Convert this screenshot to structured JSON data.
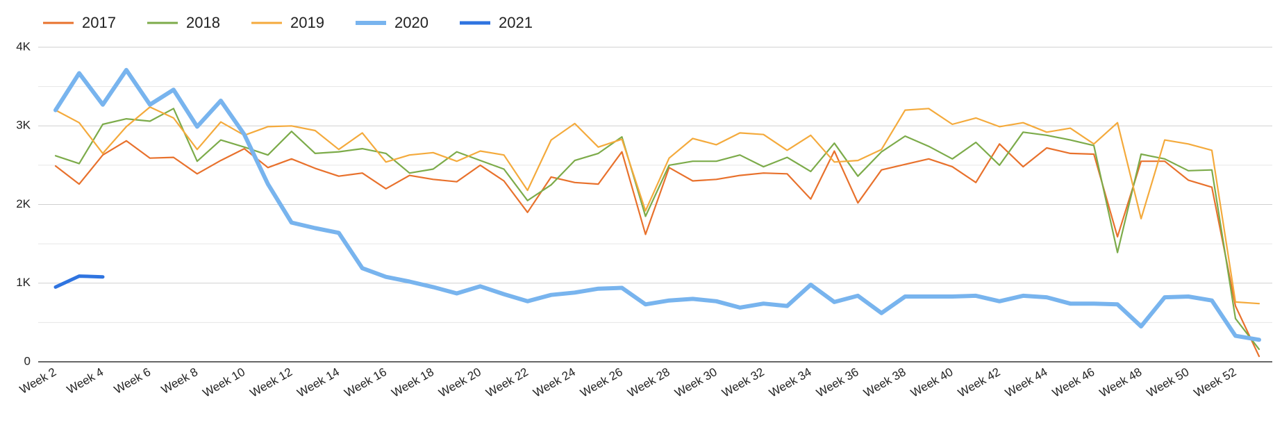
{
  "chart_data": {
    "type": "line",
    "categories": [
      "Week 2",
      null,
      "Week 4",
      null,
      "Week 6",
      null,
      "Week 8",
      null,
      "Week 10",
      null,
      "Week 12",
      null,
      "Week 14",
      null,
      "Week 16",
      null,
      "Week 18",
      null,
      "Week 20",
      null,
      "Week 22",
      null,
      "Week 24",
      null,
      "Week 26",
      null,
      "Week 28",
      null,
      "Week 30",
      null,
      "Week 32",
      null,
      "Week 34",
      null,
      "Week 36",
      null,
      "Week 38",
      null,
      "Week 40",
      null,
      "Week 42",
      null,
      "Week 44",
      null,
      "Week 46",
      null,
      "Week 48",
      null,
      "Week 50",
      null,
      "Week 52",
      null
    ],
    "series": [
      {
        "name": "2017",
        "color": "#e8712c",
        "line_width": 2.2,
        "values": [
          2490,
          2260,
          2630,
          2810,
          2590,
          2600,
          2390,
          2560,
          2710,
          2470,
          2580,
          2460,
          2360,
          2400,
          2200,
          2370,
          2320,
          2290,
          2500,
          2300,
          1900,
          2350,
          2280,
          2260,
          2670,
          1620,
          2470,
          2300,
          2320,
          2370,
          2400,
          2390,
          2070,
          2680,
          2020,
          2440,
          2510,
          2580,
          2480,
          2280,
          2770,
          2480,
          2720,
          2650,
          2640,
          1590,
          2550,
          2550,
          2310,
          2220,
          710,
          70
        ]
      },
      {
        "name": "2018",
        "color": "#7cab4a",
        "line_width": 2.2,
        "values": [
          2620,
          2520,
          3020,
          3090,
          3060,
          3220,
          2550,
          2820,
          2730,
          2630,
          2930,
          2650,
          2670,
          2710,
          2650,
          2400,
          2450,
          2670,
          2560,
          2450,
          2050,
          2250,
          2560,
          2650,
          2860,
          1850,
          2500,
          2550,
          2550,
          2630,
          2480,
          2600,
          2420,
          2780,
          2360,
          2670,
          2870,
          2740,
          2580,
          2790,
          2500,
          2920,
          2880,
          2820,
          2750,
          1390,
          2640,
          2580,
          2430,
          2440,
          550,
          160
        ]
      },
      {
        "name": "2019",
        "color": "#f4aa3c",
        "line_width": 2.2,
        "values": [
          3200,
          3040,
          2650,
          2990,
          3240,
          3100,
          2700,
          3050,
          2880,
          2990,
          3000,
          2940,
          2700,
          2910,
          2540,
          2630,
          2660,
          2550,
          2680,
          2630,
          2180,
          2820,
          3030,
          2730,
          2830,
          1920,
          2590,
          2840,
          2760,
          2910,
          2890,
          2690,
          2880,
          2540,
          2560,
          2700,
          3200,
          3220,
          3020,
          3100,
          2990,
          3040,
          2920,
          2970,
          2770,
          3040,
          1820,
          2820,
          2770,
          2690,
          760,
          740
        ]
      },
      {
        "name": "2020",
        "color": "#78b4ee",
        "line_width": 6,
        "values": [
          3200,
          3670,
          3270,
          3710,
          3270,
          3460,
          2990,
          3320,
          2890,
          2260,
          1770,
          1700,
          1640,
          1190,
          1080,
          1020,
          950,
          870,
          960,
          860,
          770,
          850,
          880,
          930,
          940,
          730,
          780,
          800,
          770,
          690,
          740,
          710,
          980,
          760,
          840,
          620,
          830,
          830,
          830,
          840,
          770,
          840,
          820,
          740,
          740,
          730,
          450,
          820,
          830,
          780,
          330,
          280
        ]
      },
      {
        "name": "2021",
        "color": "#2f74e0",
        "line_width": 5,
        "values": [
          950,
          1090,
          1080,
          null,
          null,
          null,
          null,
          null,
          null,
          null,
          null,
          null,
          null,
          null,
          null,
          null,
          null,
          null,
          null,
          null,
          null,
          null,
          null,
          null,
          null,
          null,
          null,
          null,
          null,
          null,
          null,
          null,
          null,
          null,
          null,
          null,
          null,
          null,
          null,
          null,
          null,
          null,
          null,
          null,
          null,
          null,
          null,
          null,
          null,
          null,
          null,
          null
        ]
      }
    ],
    "ylim": [
      0,
      4000
    ],
    "yticks": [
      0,
      {
        "value": 1000,
        "label": "1K"
      },
      {
        "value": 2000,
        "label": "2K"
      },
      {
        "value": 3000,
        "label": "3K"
      },
      {
        "value": 4000,
        "label": "4K"
      }
    ],
    "minor_yticks": [
      500,
      1500,
      2500,
      3500
    ],
    "grid": true,
    "legend": "top-left"
  }
}
